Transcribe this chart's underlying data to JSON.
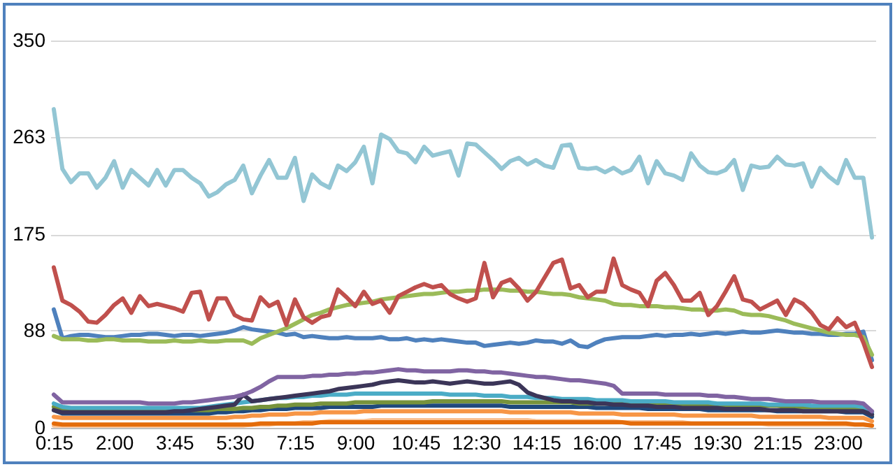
{
  "chart_data": {
    "type": "line",
    "categories": [
      "0:15",
      null,
      null,
      null,
      null,
      null,
      null,
      "2:00",
      null,
      null,
      null,
      null,
      null,
      null,
      "3:45",
      null,
      null,
      null,
      null,
      null,
      null,
      "5:30",
      null,
      null,
      null,
      null,
      null,
      null,
      "7:15",
      null,
      null,
      null,
      null,
      null,
      null,
      "9:00",
      null,
      null,
      null,
      null,
      null,
      null,
      "10:45",
      null,
      null,
      null,
      null,
      null,
      null,
      "12:30",
      null,
      null,
      null,
      null,
      null,
      null,
      "14:15",
      null,
      null,
      null,
      null,
      null,
      null,
      "16:00",
      null,
      null,
      null,
      null,
      null,
      null,
      "17:45",
      null,
      null,
      null,
      null,
      null,
      null,
      "19:30",
      null,
      null,
      null,
      null,
      null,
      null,
      "21:15",
      null,
      null,
      null,
      null,
      null,
      null,
      "23:00",
      null,
      null,
      null,
      null
    ],
    "ylim": [
      0,
      350
    ],
    "yticks": [
      0,
      88,
      175,
      263,
      350
    ],
    "grid": "y",
    "legend": false,
    "marker": "none",
    "line_style": "solid",
    "series": [
      {
        "color": "#fac090",
        "values": [
          2,
          2,
          2,
          2,
          2,
          2,
          2,
          2,
          2,
          2,
          2,
          2,
          2,
          2,
          2,
          2,
          2,
          2,
          2,
          2,
          2,
          2,
          2,
          3,
          3,
          3,
          4,
          4,
          4,
          5,
          5,
          5,
          6,
          6,
          6,
          6,
          6,
          7,
          7,
          7,
          7,
          7,
          7,
          7,
          7,
          7,
          7,
          7,
          7,
          7,
          7,
          7,
          7,
          7,
          7,
          7,
          6,
          6,
          6,
          6,
          6,
          6,
          6,
          6,
          6,
          6,
          5,
          5,
          5,
          5,
          5,
          5,
          5,
          5,
          4,
          4,
          4,
          4,
          4,
          4,
          4,
          4,
          4,
          3,
          3,
          3,
          3,
          3,
          3,
          3,
          3,
          3,
          3,
          3,
          3,
          2
        ]
      },
      {
        "color": "#e46c0a",
        "values": [
          4,
          3,
          3,
          3,
          3,
          3,
          3,
          3,
          3,
          3,
          3,
          3,
          3,
          3,
          3,
          3,
          3,
          3,
          3,
          3,
          3,
          3,
          3,
          3,
          4,
          4,
          4,
          4,
          4,
          4,
          4,
          5,
          5,
          5,
          5,
          5,
          5,
          5,
          5,
          5,
          5,
          5,
          5,
          5,
          5,
          5,
          5,
          5,
          5,
          5,
          5,
          5,
          5,
          5,
          5,
          5,
          5,
          5,
          5,
          5,
          5,
          5,
          5,
          5,
          5,
          5,
          5,
          4,
          4,
          4,
          4,
          4,
          4,
          4,
          4,
          4,
          4,
          4,
          4,
          4,
          4,
          4,
          4,
          4,
          4,
          4,
          4,
          4,
          4,
          4,
          4,
          4,
          4,
          3,
          3,
          2
        ]
      },
      {
        "color": "#f79646",
        "values": [
          10,
          9,
          9,
          9,
          9,
          9,
          9,
          9,
          9,
          9,
          9,
          9,
          9,
          9,
          9,
          9,
          9,
          9,
          9,
          9,
          9,
          10,
          10,
          11,
          11,
          12,
          12,
          12,
          13,
          13,
          13,
          14,
          14,
          14,
          14,
          14,
          15,
          15,
          15,
          15,
          15,
          15,
          15,
          15,
          15,
          15,
          15,
          15,
          15,
          15,
          15,
          15,
          15,
          14,
          14,
          14,
          14,
          14,
          14,
          14,
          14,
          13,
          13,
          13,
          13,
          13,
          12,
          12,
          12,
          12,
          12,
          12,
          12,
          11,
          11,
          11,
          11,
          11,
          11,
          11,
          11,
          11,
          10,
          10,
          10,
          10,
          10,
          10,
          10,
          10,
          9,
          9,
          9,
          9,
          9,
          6
        ]
      },
      {
        "color": "#1f497d",
        "values": [
          16,
          13,
          13,
          13,
          13,
          13,
          13,
          13,
          13,
          13,
          13,
          13,
          13,
          13,
          13,
          13,
          13,
          13,
          13,
          14,
          14,
          15,
          15,
          16,
          16,
          17,
          17,
          17,
          18,
          18,
          18,
          18,
          19,
          19,
          19,
          19,
          19,
          19,
          20,
          20,
          20,
          20,
          20,
          20,
          20,
          20,
          20,
          20,
          20,
          20,
          20,
          20,
          20,
          19,
          19,
          19,
          19,
          19,
          19,
          19,
          19,
          19,
          19,
          18,
          18,
          18,
          18,
          18,
          18,
          17,
          17,
          17,
          17,
          17,
          17,
          17,
          16,
          16,
          16,
          16,
          16,
          16,
          16,
          16,
          15,
          15,
          15,
          15,
          15,
          15,
          15,
          15,
          14,
          14,
          14,
          10
        ]
      },
      {
        "color": "#77933c",
        "values": [
          19,
          16,
          16,
          16,
          16,
          16,
          16,
          16,
          16,
          16,
          16,
          16,
          16,
          16,
          16,
          16,
          16,
          16,
          16,
          17,
          17,
          17,
          18,
          18,
          19,
          19,
          20,
          20,
          21,
          21,
          21,
          22,
          22,
          22,
          22,
          23,
          23,
          23,
          23,
          23,
          23,
          23,
          23,
          23,
          24,
          24,
          24,
          24,
          24,
          24,
          24,
          24,
          24,
          23,
          23,
          23,
          23,
          23,
          23,
          23,
          23,
          22,
          22,
          22,
          22,
          22,
          22,
          22,
          21,
          21,
          21,
          21,
          21,
          21,
          21,
          21,
          20,
          20,
          20,
          20,
          20,
          20,
          20,
          20,
          20,
          19,
          19,
          19,
          19,
          19,
          19,
          18,
          18,
          18,
          18,
          12
        ]
      },
      {
        "color": "#4bacc6",
        "values": [
          22,
          19,
          18,
          18,
          18,
          18,
          18,
          18,
          18,
          18,
          18,
          18,
          18,
          18,
          18,
          18,
          18,
          18,
          19,
          20,
          21,
          22,
          23,
          24,
          25,
          26,
          27,
          27,
          28,
          28,
          29,
          29,
          30,
          30,
          30,
          31,
          31,
          31,
          31,
          31,
          31,
          31,
          31,
          31,
          31,
          31,
          30,
          30,
          30,
          30,
          29,
          29,
          29,
          28,
          28,
          28,
          27,
          27,
          27,
          26,
          26,
          26,
          26,
          25,
          25,
          25,
          25,
          24,
          24,
          24,
          24,
          24,
          23,
          23,
          23,
          23,
          23,
          22,
          22,
          22,
          22,
          22,
          22,
          21,
          21,
          21,
          21,
          21,
          20,
          20,
          20,
          20,
          20,
          20,
          19,
          14
        ]
      },
      {
        "color": "#3b3558",
        "values": [
          16,
          14,
          14,
          14,
          14,
          14,
          14,
          14,
          14,
          14,
          14,
          14,
          14,
          14,
          15,
          15,
          16,
          17,
          18,
          19,
          20,
          21,
          30,
          24,
          25,
          26,
          27,
          28,
          29,
          30,
          31,
          32,
          33,
          35,
          36,
          37,
          38,
          39,
          41,
          42,
          43,
          42,
          41,
          41,
          42,
          41,
          40,
          41,
          42,
          41,
          40,
          40,
          41,
          42,
          39,
          32,
          29,
          27,
          25,
          24,
          24,
          23,
          23,
          22,
          22,
          21,
          21,
          20,
          20,
          20,
          19,
          19,
          19,
          18,
          18,
          18,
          18,
          18,
          17,
          17,
          17,
          17,
          17,
          16,
          16,
          16,
          16,
          15,
          15,
          15,
          15,
          15,
          15,
          15,
          15,
          12
        ]
      },
      {
        "color": "#8064a2",
        "values": [
          30,
          23,
          23,
          23,
          23,
          23,
          23,
          23,
          23,
          23,
          23,
          22,
          22,
          22,
          22,
          23,
          23,
          24,
          25,
          26,
          27,
          28,
          30,
          33,
          37,
          42,
          46,
          46,
          46,
          46,
          47,
          47,
          48,
          48,
          49,
          49,
          50,
          50,
          51,
          52,
          53,
          52,
          52,
          51,
          51,
          51,
          51,
          52,
          52,
          51,
          51,
          50,
          50,
          49,
          48,
          47,
          46,
          46,
          45,
          44,
          43,
          43,
          42,
          41,
          40,
          38,
          31,
          31,
          31,
          31,
          31,
          30,
          30,
          30,
          30,
          30,
          29,
          29,
          28,
          28,
          27,
          26,
          26,
          26,
          25,
          24,
          24,
          24,
          24,
          23,
          23,
          23,
          23,
          23,
          22,
          15
        ]
      },
      {
        "color": "#4f81bd",
        "values": [
          107,
          81,
          83,
          84,
          84,
          83,
          82,
          82,
          83,
          84,
          84,
          85,
          85,
          84,
          83,
          84,
          84,
          83,
          84,
          85,
          86,
          88,
          91,
          89,
          88,
          87,
          86,
          84,
          85,
          82,
          83,
          82,
          81,
          81,
          82,
          81,
          81,
          81,
          82,
          80,
          80,
          81,
          79,
          80,
          79,
          80,
          79,
          78,
          77,
          77,
          74,
          75,
          76,
          77,
          76,
          77,
          79,
          78,
          78,
          76,
          79,
          74,
          73,
          77,
          80,
          81,
          82,
          82,
          82,
          83,
          84,
          83,
          84,
          84,
          85,
          84,
          85,
          86,
          85,
          86,
          87,
          86,
          86,
          87,
          88,
          87,
          86,
          86,
          85,
          85,
          84,
          84,
          85,
          85,
          87,
          61
        ]
      },
      {
        "color": "#9bbb59",
        "values": [
          83,
          80,
          80,
          80,
          79,
          79,
          80,
          80,
          79,
          79,
          79,
          78,
          78,
          78,
          79,
          78,
          78,
          79,
          78,
          78,
          79,
          79,
          79,
          76,
          81,
          84,
          87,
          90,
          94,
          98,
          102,
          104,
          107,
          109,
          111,
          112,
          113,
          114,
          116,
          117,
          118,
          119,
          120,
          121,
          121,
          122,
          123,
          123,
          124,
          124,
          125,
          125,
          125,
          124,
          124,
          123,
          123,
          122,
          121,
          121,
          120,
          118,
          117,
          116,
          115,
          112,
          111,
          111,
          110,
          110,
          110,
          109,
          109,
          108,
          107,
          107,
          106,
          106,
          107,
          106,
          103,
          102,
          102,
          101,
          99,
          97,
          94,
          92,
          90,
          88,
          86,
          85,
          84,
          84,
          82,
          66
        ]
      },
      {
        "color": "#c0504d",
        "values": [
          145,
          115,
          111,
          105,
          96,
          95,
          102,
          111,
          117,
          104,
          119,
          110,
          112,
          110,
          108,
          105,
          122,
          123,
          98,
          117,
          117,
          102,
          98,
          97,
          118,
          110,
          114,
          93,
          116,
          100,
          95,
          100,
          102,
          125,
          118,
          110,
          123,
          112,
          115,
          104,
          119,
          123,
          127,
          130,
          127,
          129,
          121,
          117,
          114,
          117,
          149,
          118,
          131,
          134,
          126,
          115,
          123,
          136,
          149,
          152,
          126,
          129,
          118,
          123,
          123,
          153,
          129,
          125,
          122,
          110,
          133,
          140,
          129,
          115,
          115,
          122,
          102,
          110,
          123,
          137,
          116,
          114,
          107,
          111,
          115,
          102,
          116,
          112,
          104,
          93,
          89,
          99,
          91,
          95,
          77,
          55
        ]
      },
      {
        "color": "#93c6d4",
        "values": [
          288,
          234,
          222,
          230,
          230,
          217,
          226,
          241,
          217,
          233,
          226,
          219,
          233,
          219,
          233,
          233,
          226,
          221,
          209,
          213,
          220,
          224,
          237,
          212,
          228,
          242,
          226,
          226,
          244,
          205,
          229,
          221,
          217,
          237,
          232,
          240,
          254,
          221,
          265,
          261,
          250,
          248,
          240,
          254,
          246,
          248,
          250,
          228,
          257,
          256,
          249,
          242,
          234,
          241,
          244,
          238,
          242,
          237,
          235,
          255,
          256,
          235,
          234,
          235,
          231,
          235,
          230,
          233,
          245,
          221,
          241,
          230,
          228,
          224,
          248,
          237,
          231,
          230,
          233,
          242,
          215,
          237,
          235,
          236,
          245,
          238,
          237,
          239,
          218,
          235,
          227,
          221,
          242,
          226,
          226,
          172
        ]
      }
    ]
  }
}
